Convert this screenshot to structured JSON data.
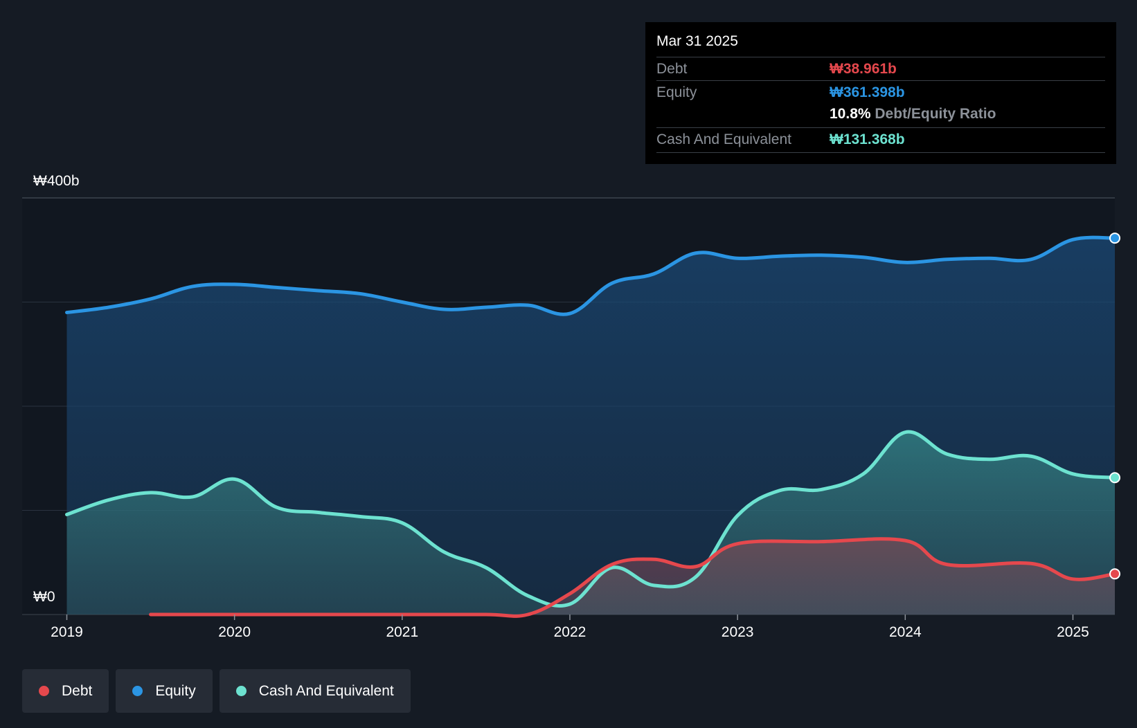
{
  "tooltip": {
    "date": "Mar 31 2025",
    "debt_label": "Debt",
    "debt_value": "₩38.961b",
    "equity_label": "Equity",
    "equity_value": "₩361.398b",
    "ratio_value": "10.8%",
    "ratio_label": "Debt/Equity Ratio",
    "cash_label": "Cash And Equivalent",
    "cash_value": "₩131.368b"
  },
  "legend": [
    {
      "label": "Debt",
      "color": "#e5484d"
    },
    {
      "label": "Equity",
      "color": "#2b95e3"
    },
    {
      "label": "Cash And Equivalent",
      "color": "#6de2d0"
    }
  ],
  "chart_data": {
    "type": "area",
    "y_top_label": "₩400b",
    "y_bottom_label": "₩0",
    "ylim": [
      0,
      400
    ],
    "xlim": [
      2019.0,
      2025.25
    ],
    "x_ticks": [
      2019,
      2020,
      2021,
      2022,
      2023,
      2024,
      2025
    ],
    "grid": true,
    "series": [
      {
        "name": "Equity",
        "color": "#2b95e3",
        "points": [
          [
            2019.0,
            290
          ],
          [
            2019.25,
            295
          ],
          [
            2019.5,
            303
          ],
          [
            2019.75,
            315
          ],
          [
            2020.0,
            317
          ],
          [
            2020.25,
            314
          ],
          [
            2020.5,
            311
          ],
          [
            2020.75,
            308
          ],
          [
            2021.0,
            300
          ],
          [
            2021.25,
            293
          ],
          [
            2021.5,
            295
          ],
          [
            2021.75,
            297
          ],
          [
            2022.0,
            289
          ],
          [
            2022.25,
            318
          ],
          [
            2022.5,
            327
          ],
          [
            2022.75,
            347
          ],
          [
            2023.0,
            342
          ],
          [
            2023.25,
            344
          ],
          [
            2023.5,
            345
          ],
          [
            2023.75,
            343
          ],
          [
            2024.0,
            338
          ],
          [
            2024.25,
            341
          ],
          [
            2024.5,
            342
          ],
          [
            2024.75,
            341
          ],
          [
            2025.0,
            360
          ],
          [
            2025.25,
            361.4
          ]
        ]
      },
      {
        "name": "Cash And Equivalent",
        "color": "#6de2d0",
        "points": [
          [
            2019.0,
            96
          ],
          [
            2019.25,
            110
          ],
          [
            2019.5,
            117
          ],
          [
            2019.75,
            113
          ],
          [
            2020.0,
            130
          ],
          [
            2020.25,
            103
          ],
          [
            2020.5,
            98
          ],
          [
            2020.75,
            94
          ],
          [
            2021.0,
            88
          ],
          [
            2021.25,
            60
          ],
          [
            2021.5,
            45
          ],
          [
            2021.75,
            18
          ],
          [
            2022.0,
            10
          ],
          [
            2022.25,
            45
          ],
          [
            2022.5,
            28
          ],
          [
            2022.75,
            36
          ],
          [
            2023.0,
            95
          ],
          [
            2023.25,
            119
          ],
          [
            2023.5,
            120
          ],
          [
            2023.75,
            135
          ],
          [
            2024.0,
            175
          ],
          [
            2024.25,
            154
          ],
          [
            2024.5,
            149
          ],
          [
            2024.75,
            152
          ],
          [
            2025.0,
            135
          ],
          [
            2025.25,
            131.4
          ]
        ]
      },
      {
        "name": "Debt",
        "color": "#e5484d",
        "points": [
          [
            2019.5,
            0
          ],
          [
            2020.0,
            0
          ],
          [
            2020.5,
            0
          ],
          [
            2021.0,
            0
          ],
          [
            2021.5,
            0
          ],
          [
            2021.75,
            0
          ],
          [
            2022.0,
            20
          ],
          [
            2022.25,
            48
          ],
          [
            2022.5,
            53
          ],
          [
            2022.75,
            46
          ],
          [
            2023.0,
            68
          ],
          [
            2023.5,
            70
          ],
          [
            2024.0,
            71
          ],
          [
            2024.25,
            48
          ],
          [
            2024.75,
            49
          ],
          [
            2025.0,
            34
          ],
          [
            2025.25,
            39
          ]
        ]
      }
    ]
  }
}
